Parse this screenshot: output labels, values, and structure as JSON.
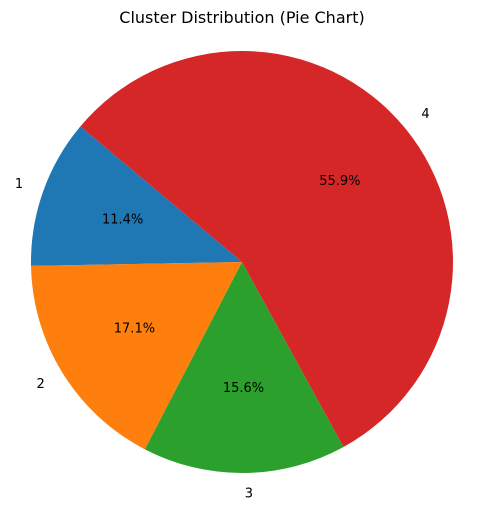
{
  "chart_data": {
    "type": "pie",
    "title": "Cluster Distribution (Pie Chart)",
    "categories": [
      "1",
      "2",
      "3",
      "4"
    ],
    "values": [
      11.4,
      17.1,
      15.6,
      55.9
    ],
    "value_labels": [
      "11.4%",
      "17.1%",
      "15.6%",
      "55.9%"
    ],
    "colors": [
      "#1f77b4",
      "#ff7f0e",
      "#2ca02c",
      "#d62728"
    ],
    "start_angle_deg": 140,
    "direction": "counterclockwise",
    "legend": "none"
  }
}
